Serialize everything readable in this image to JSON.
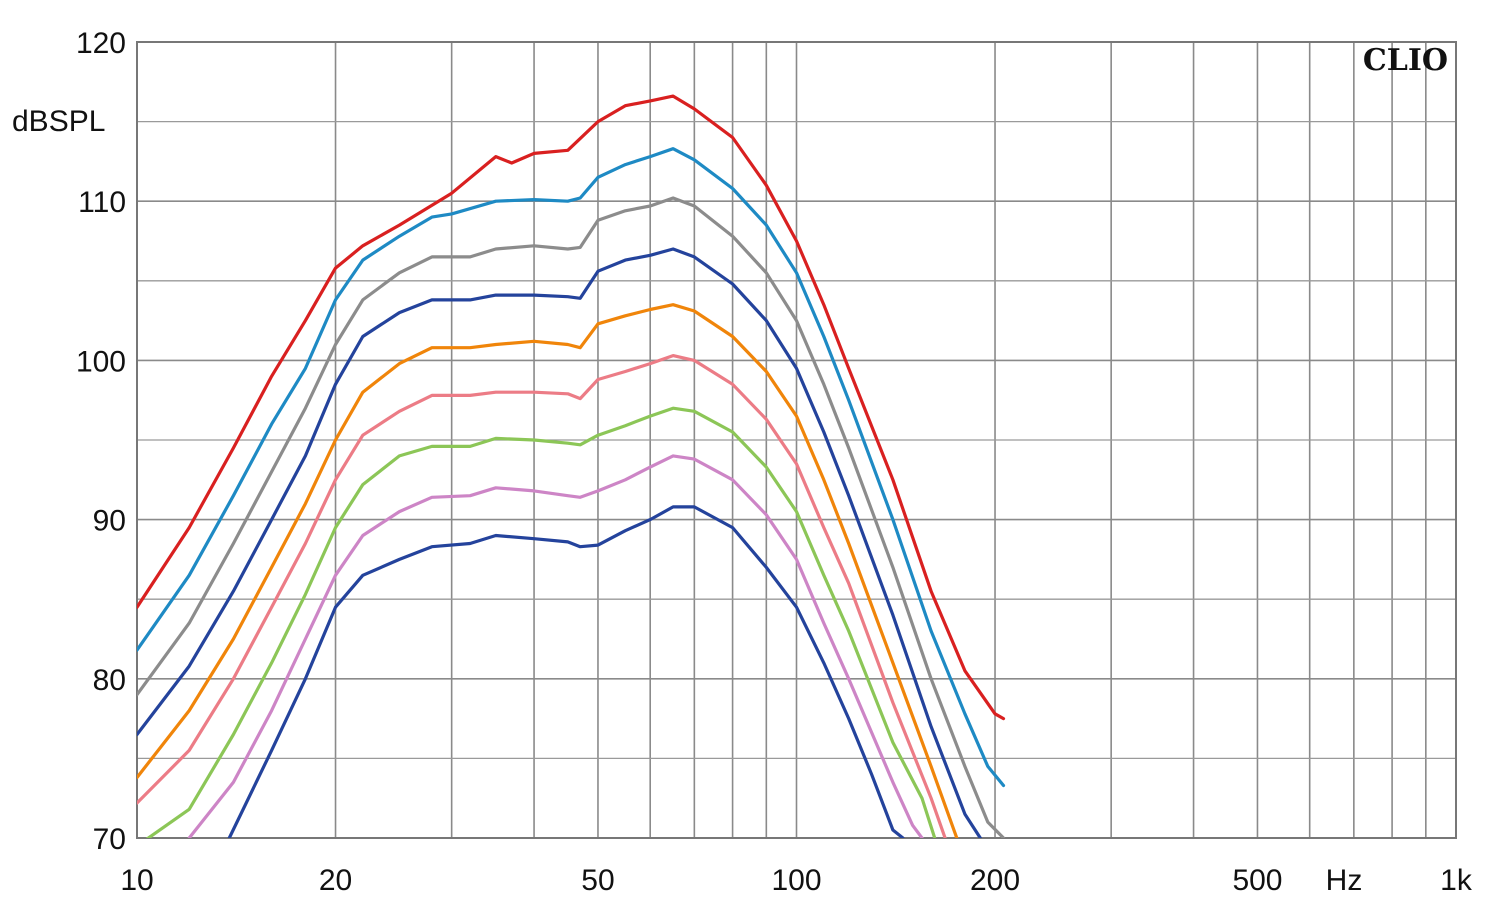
{
  "chart_data": {
    "type": "line",
    "title": "",
    "brand": "CLIO",
    "xlabel": "Hz",
    "ylabel": "dBSPL",
    "x_scale": "log",
    "xlim": [
      10,
      1000
    ],
    "ylim": [
      70,
      120
    ],
    "grid": true,
    "x_ticks": [
      {
        "value": 10,
        "label": "10"
      },
      {
        "value": 20,
        "label": "20"
      },
      {
        "value": 50,
        "label": "50"
      },
      {
        "value": 100,
        "label": "100"
      },
      {
        "value": 200,
        "label": "200"
      },
      {
        "value": 500,
        "label": "500"
      },
      {
        "value": 1000,
        "label": "1k"
      }
    ],
    "y_ticks": [
      {
        "value": 70,
        "label": "70"
      },
      {
        "value": 80,
        "label": "80"
      },
      {
        "value": 90,
        "label": "90"
      },
      {
        "value": 100,
        "label": "100"
      },
      {
        "value": 110,
        "label": "110"
      },
      {
        "value": 120,
        "label": "120"
      }
    ],
    "series": [
      {
        "color": "#d92020",
        "points": [
          [
            10,
            84.5
          ],
          [
            12,
            89.5
          ],
          [
            14,
            94.5
          ],
          [
            16,
            99
          ],
          [
            18,
            102.5
          ],
          [
            20,
            105.8
          ],
          [
            22,
            107.2
          ],
          [
            25,
            108.5
          ],
          [
            30,
            110.5
          ],
          [
            35,
            112.8
          ],
          [
            37,
            112.4
          ],
          [
            40,
            113
          ],
          [
            45,
            113.2
          ],
          [
            50,
            115
          ],
          [
            55,
            116
          ],
          [
            60,
            116.3
          ],
          [
            65,
            116.6
          ],
          [
            70,
            115.8
          ],
          [
            80,
            114
          ],
          [
            90,
            111
          ],
          [
            100,
            107.5
          ],
          [
            110,
            103.5
          ],
          [
            120,
            99.5
          ],
          [
            140,
            92.5
          ],
          [
            160,
            85.5
          ],
          [
            180,
            80.5
          ],
          [
            200,
            77.8
          ],
          [
            206,
            77.5
          ]
        ]
      },
      {
        "color": "#1e8ac4",
        "points": [
          [
            10,
            81.8
          ],
          [
            12,
            86.5
          ],
          [
            14,
            91.5
          ],
          [
            16,
            96
          ],
          [
            18,
            99.5
          ],
          [
            20,
            103.8
          ],
          [
            22,
            106.3
          ],
          [
            25,
            107.8
          ],
          [
            28,
            109
          ],
          [
            30,
            109.2
          ],
          [
            35,
            110
          ],
          [
            40,
            110.1
          ],
          [
            45,
            110
          ],
          [
            47,
            110.2
          ],
          [
            50,
            111.5
          ],
          [
            55,
            112.3
          ],
          [
            60,
            112.8
          ],
          [
            65,
            113.3
          ],
          [
            70,
            112.6
          ],
          [
            80,
            110.8
          ],
          [
            90,
            108.5
          ],
          [
            100,
            105.5
          ],
          [
            110,
            101.5
          ],
          [
            120,
            97.5
          ],
          [
            140,
            90
          ],
          [
            160,
            83
          ],
          [
            180,
            77.8
          ],
          [
            195,
            74.5
          ],
          [
            206,
            73.3
          ]
        ]
      },
      {
        "color": "#8c8c8c",
        "points": [
          [
            10,
            79
          ],
          [
            12,
            83.5
          ],
          [
            14,
            88.5
          ],
          [
            16,
            93
          ],
          [
            18,
            97
          ],
          [
            20,
            101
          ],
          [
            22,
            103.8
          ],
          [
            25,
            105.5
          ],
          [
            28,
            106.5
          ],
          [
            32,
            106.5
          ],
          [
            35,
            107
          ],
          [
            40,
            107.2
          ],
          [
            45,
            107
          ],
          [
            47,
            107.1
          ],
          [
            50,
            108.8
          ],
          [
            55,
            109.4
          ],
          [
            60,
            109.7
          ],
          [
            65,
            110.2
          ],
          [
            70,
            109.7
          ],
          [
            80,
            107.8
          ],
          [
            90,
            105.5
          ],
          [
            100,
            102.5
          ],
          [
            110,
            98.5
          ],
          [
            120,
            94.5
          ],
          [
            140,
            87
          ],
          [
            160,
            80
          ],
          [
            180,
            74.5
          ],
          [
            195,
            71
          ],
          [
            206,
            70
          ]
        ]
      },
      {
        "color": "#24439c",
        "points": [
          [
            10,
            76.5
          ],
          [
            12,
            80.8
          ],
          [
            14,
            85.5
          ],
          [
            16,
            90
          ],
          [
            18,
            94
          ],
          [
            20,
            98.5
          ],
          [
            22,
            101.5
          ],
          [
            25,
            103
          ],
          [
            28,
            103.8
          ],
          [
            32,
            103.8
          ],
          [
            35,
            104.1
          ],
          [
            40,
            104.1
          ],
          [
            45,
            104
          ],
          [
            47,
            103.9
          ],
          [
            50,
            105.6
          ],
          [
            55,
            106.3
          ],
          [
            60,
            106.6
          ],
          [
            65,
            107
          ],
          [
            70,
            106.5
          ],
          [
            80,
            104.8
          ],
          [
            90,
            102.5
          ],
          [
            100,
            99.5
          ],
          [
            110,
            95.5
          ],
          [
            120,
            91.5
          ],
          [
            140,
            84
          ],
          [
            160,
            77
          ],
          [
            180,
            71.5
          ],
          [
            190,
            70
          ]
        ]
      },
      {
        "color": "#f0850a",
        "points": [
          [
            10,
            73.8
          ],
          [
            12,
            78
          ],
          [
            14,
            82.5
          ],
          [
            16,
            87
          ],
          [
            18,
            91
          ],
          [
            20,
            95
          ],
          [
            22,
            98
          ],
          [
            25,
            99.8
          ],
          [
            28,
            100.8
          ],
          [
            32,
            100.8
          ],
          [
            35,
            101
          ],
          [
            40,
            101.2
          ],
          [
            45,
            101
          ],
          [
            47,
            100.8
          ],
          [
            50,
            102.3
          ],
          [
            55,
            102.8
          ],
          [
            60,
            103.2
          ],
          [
            65,
            103.5
          ],
          [
            70,
            103.1
          ],
          [
            80,
            101.5
          ],
          [
            90,
            99.3
          ],
          [
            100,
            96.5
          ],
          [
            110,
            92.5
          ],
          [
            120,
            88.5
          ],
          [
            140,
            81
          ],
          [
            160,
            74.5
          ],
          [
            175,
            70
          ]
        ]
      },
      {
        "color": "#ec7c86",
        "points": [
          [
            10,
            72.2
          ],
          [
            12,
            75.5
          ],
          [
            14,
            80
          ],
          [
            16,
            84.5
          ],
          [
            18,
            88.5
          ],
          [
            20,
            92.5
          ],
          [
            22,
            95.3
          ],
          [
            25,
            96.8
          ],
          [
            28,
            97.8
          ],
          [
            32,
            97.8
          ],
          [
            35,
            98
          ],
          [
            40,
            98
          ],
          [
            45,
            97.9
          ],
          [
            47,
            97.6
          ],
          [
            50,
            98.8
          ],
          [
            55,
            99.3
          ],
          [
            60,
            99.8
          ],
          [
            65,
            100.3
          ],
          [
            70,
            100
          ],
          [
            80,
            98.5
          ],
          [
            90,
            96.3
          ],
          [
            100,
            93.5
          ],
          [
            110,
            89.5
          ],
          [
            120,
            86
          ],
          [
            140,
            78.5
          ],
          [
            160,
            72.5
          ],
          [
            168,
            70
          ]
        ]
      },
      {
        "color": "#8cc657",
        "points": [
          [
            10,
            69.5
          ],
          [
            12,
            71.8
          ],
          [
            14,
            76.5
          ],
          [
            16,
            81
          ],
          [
            18,
            85.3
          ],
          [
            20,
            89.5
          ],
          [
            22,
            92.2
          ],
          [
            25,
            94
          ],
          [
            28,
            94.6
          ],
          [
            32,
            94.6
          ],
          [
            35,
            95.1
          ],
          [
            40,
            95
          ],
          [
            45,
            94.8
          ],
          [
            47,
            94.7
          ],
          [
            50,
            95.3
          ],
          [
            55,
            95.9
          ],
          [
            60,
            96.5
          ],
          [
            65,
            97
          ],
          [
            70,
            96.8
          ],
          [
            80,
            95.5
          ],
          [
            90,
            93.3
          ],
          [
            100,
            90.5
          ],
          [
            110,
            86.5
          ],
          [
            120,
            83
          ],
          [
            140,
            76
          ],
          [
            155,
            72.5
          ],
          [
            162,
            70
          ]
        ]
      },
      {
        "color": "#cd85c6",
        "points": [
          [
            12,
            70
          ],
          [
            14,
            73.5
          ],
          [
            16,
            78
          ],
          [
            18,
            82.5
          ],
          [
            20,
            86.5
          ],
          [
            22,
            89
          ],
          [
            25,
            90.5
          ],
          [
            28,
            91.4
          ],
          [
            32,
            91.5
          ],
          [
            35,
            92
          ],
          [
            40,
            91.8
          ],
          [
            45,
            91.5
          ],
          [
            47,
            91.4
          ],
          [
            50,
            91.8
          ],
          [
            55,
            92.5
          ],
          [
            60,
            93.3
          ],
          [
            65,
            94
          ],
          [
            70,
            93.8
          ],
          [
            80,
            92.5
          ],
          [
            90,
            90.3
          ],
          [
            100,
            87.5
          ],
          [
            110,
            83.5
          ],
          [
            120,
            80
          ],
          [
            140,
            73.5
          ],
          [
            150,
            70.8
          ],
          [
            155,
            70
          ]
        ]
      },
      {
        "color": "#24439c",
        "points": [
          [
            13.8,
            70
          ],
          [
            16,
            75.5
          ],
          [
            18,
            80
          ],
          [
            20,
            84.5
          ],
          [
            22,
            86.5
          ],
          [
            25,
            87.5
          ],
          [
            28,
            88.3
          ],
          [
            32,
            88.5
          ],
          [
            35,
            89
          ],
          [
            40,
            88.8
          ],
          [
            45,
            88.6
          ],
          [
            47,
            88.3
          ],
          [
            50,
            88.4
          ],
          [
            55,
            89.3
          ],
          [
            60,
            90
          ],
          [
            65,
            90.8
          ],
          [
            70,
            90.8
          ],
          [
            80,
            89.5
          ],
          [
            90,
            87
          ],
          [
            100,
            84.5
          ],
          [
            110,
            81
          ],
          [
            120,
            77.5
          ],
          [
            130,
            74
          ],
          [
            140,
            70.5
          ],
          [
            145,
            70
          ]
        ]
      }
    ]
  }
}
